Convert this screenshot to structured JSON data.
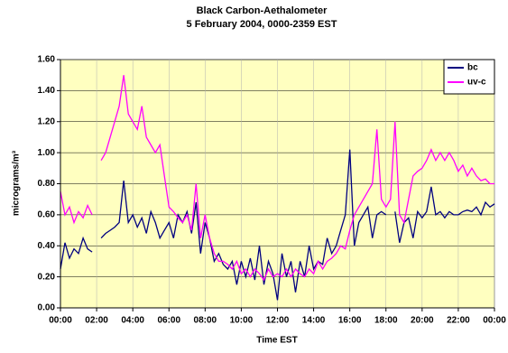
{
  "chart_data": {
    "type": "line",
    "title": "Black Carbon-Aethalometer",
    "subtitle": "5 February 2004, 0000-2359 EST",
    "x_label": "Time EST",
    "y_label": "micrograms/m³",
    "x": [
      0,
      0.25,
      0.5,
      0.75,
      1,
      1.25,
      1.5,
      1.75,
      2,
      2.25,
      2.5,
      2.75,
      3,
      3.25,
      3.5,
      3.75,
      4,
      4.25,
      4.5,
      4.75,
      5,
      5.25,
      5.5,
      5.75,
      6,
      6.25,
      6.5,
      6.75,
      7,
      7.25,
      7.5,
      7.75,
      8,
      8.25,
      8.5,
      8.75,
      9,
      9.25,
      9.5,
      9.75,
      10,
      10.25,
      10.5,
      10.75,
      11,
      11.25,
      11.5,
      11.75,
      12,
      12.25,
      12.5,
      12.75,
      13,
      13.25,
      13.5,
      13.75,
      14,
      14.25,
      14.5,
      14.75,
      15,
      15.25,
      15.5,
      15.75,
      16,
      16.25,
      16.5,
      16.75,
      17,
      17.25,
      17.5,
      17.75,
      18,
      18.25,
      18.5,
      18.75,
      19,
      19.25,
      19.5,
      19.75,
      20,
      20.25,
      20.5,
      20.75,
      21,
      21.25,
      21.5,
      21.75,
      22,
      22.25,
      22.5,
      22.75,
      23,
      23.25,
      23.5,
      23.75,
      24
    ],
    "series": [
      {
        "name": "bc",
        "color": "#000080",
        "values": [
          0.25,
          0.42,
          0.32,
          0.38,
          0.35,
          0.45,
          0.38,
          0.36,
          null,
          0.45,
          0.48,
          0.5,
          0.52,
          0.55,
          0.82,
          0.55,
          0.6,
          0.52,
          0.58,
          0.48,
          0.62,
          0.55,
          0.45,
          0.5,
          0.55,
          0.45,
          0.6,
          0.55,
          0.62,
          0.48,
          0.68,
          0.35,
          0.55,
          0.45,
          0.3,
          0.35,
          0.28,
          0.25,
          0.3,
          0.15,
          0.3,
          0.2,
          0.32,
          0.18,
          0.4,
          0.15,
          0.3,
          0.22,
          0.05,
          0.35,
          0.2,
          0.3,
          0.1,
          0.3,
          0.2,
          0.4,
          0.25,
          0.3,
          0.28,
          0.45,
          0.35,
          0.4,
          0.5,
          0.6,
          1.02,
          0.4,
          0.55,
          0.6,
          0.65,
          0.45,
          0.6,
          0.62,
          0.6,
          null,
          0.62,
          0.42,
          0.55,
          0.58,
          0.45,
          0.62,
          0.58,
          0.62,
          0.78,
          0.6,
          0.62,
          0.58,
          0.62,
          0.6,
          0.6,
          0.62,
          0.63,
          0.62,
          0.65,
          0.6,
          0.68,
          0.65,
          0.67
        ]
      },
      {
        "name": "uv-c",
        "color": "#ff00ff",
        "values": [
          0.75,
          0.6,
          0.65,
          0.55,
          0.62,
          0.58,
          0.66,
          0.6,
          null,
          0.95,
          1.0,
          1.1,
          1.2,
          1.3,
          1.5,
          1.25,
          1.2,
          1.15,
          1.3,
          1.1,
          1.05,
          1.0,
          1.05,
          0.85,
          0.65,
          0.62,
          0.58,
          0.55,
          0.6,
          0.5,
          0.8,
          0.45,
          0.6,
          0.45,
          0.35,
          0.3,
          0.3,
          0.28,
          0.25,
          0.3,
          0.22,
          0.25,
          0.2,
          0.25,
          0.22,
          0.18,
          0.25,
          0.2,
          0.22,
          0.2,
          0.25,
          0.2,
          0.25,
          0.22,
          0.2,
          0.25,
          0.22,
          0.3,
          0.25,
          0.3,
          0.32,
          0.35,
          0.4,
          0.38,
          0.5,
          0.6,
          0.65,
          0.7,
          0.75,
          0.8,
          1.15,
          0.7,
          0.65,
          0.7,
          1.2,
          0.6,
          0.55,
          0.7,
          0.85,
          0.88,
          0.9,
          0.95,
          1.02,
          0.95,
          1.0,
          0.95,
          1.0,
          0.95,
          0.88,
          0.92,
          0.85,
          0.9,
          0.85,
          0.82,
          0.83,
          0.8,
          0.8
        ]
      }
    ],
    "xlim": [
      0,
      24
    ],
    "xticks": [
      {
        "value": 0,
        "label": "00:00"
      },
      {
        "value": 2,
        "label": "02:00"
      },
      {
        "value": 4,
        "label": "04:00"
      },
      {
        "value": 6,
        "label": "06:00"
      },
      {
        "value": 8,
        "label": "08:00"
      },
      {
        "value": 10,
        "label": "10:00"
      },
      {
        "value": 12,
        "label": "12:00"
      },
      {
        "value": 14,
        "label": "14:00"
      },
      {
        "value": 16,
        "label": "16:00"
      },
      {
        "value": 18,
        "label": "18:00"
      },
      {
        "value": 20,
        "label": "20:00"
      },
      {
        "value": 22,
        "label": "22:00"
      },
      {
        "value": 24,
        "label": "00:00"
      }
    ],
    "ylim": [
      0,
      1.6
    ],
    "yticks": [
      {
        "value": 0,
        "label": "0.00"
      },
      {
        "value": 0.2,
        "label": "0.20"
      },
      {
        "value": 0.4,
        "label": "0.40"
      },
      {
        "value": 0.6,
        "label": "0.60"
      },
      {
        "value": 0.8,
        "label": "0.80"
      },
      {
        "value": 1.0,
        "label": "1.00"
      },
      {
        "value": 1.2,
        "label": "1.20"
      },
      {
        "value": 1.4,
        "label": "1.40"
      },
      {
        "value": 1.6,
        "label": "1.60"
      }
    ],
    "grid": true,
    "legend": "top-right"
  }
}
